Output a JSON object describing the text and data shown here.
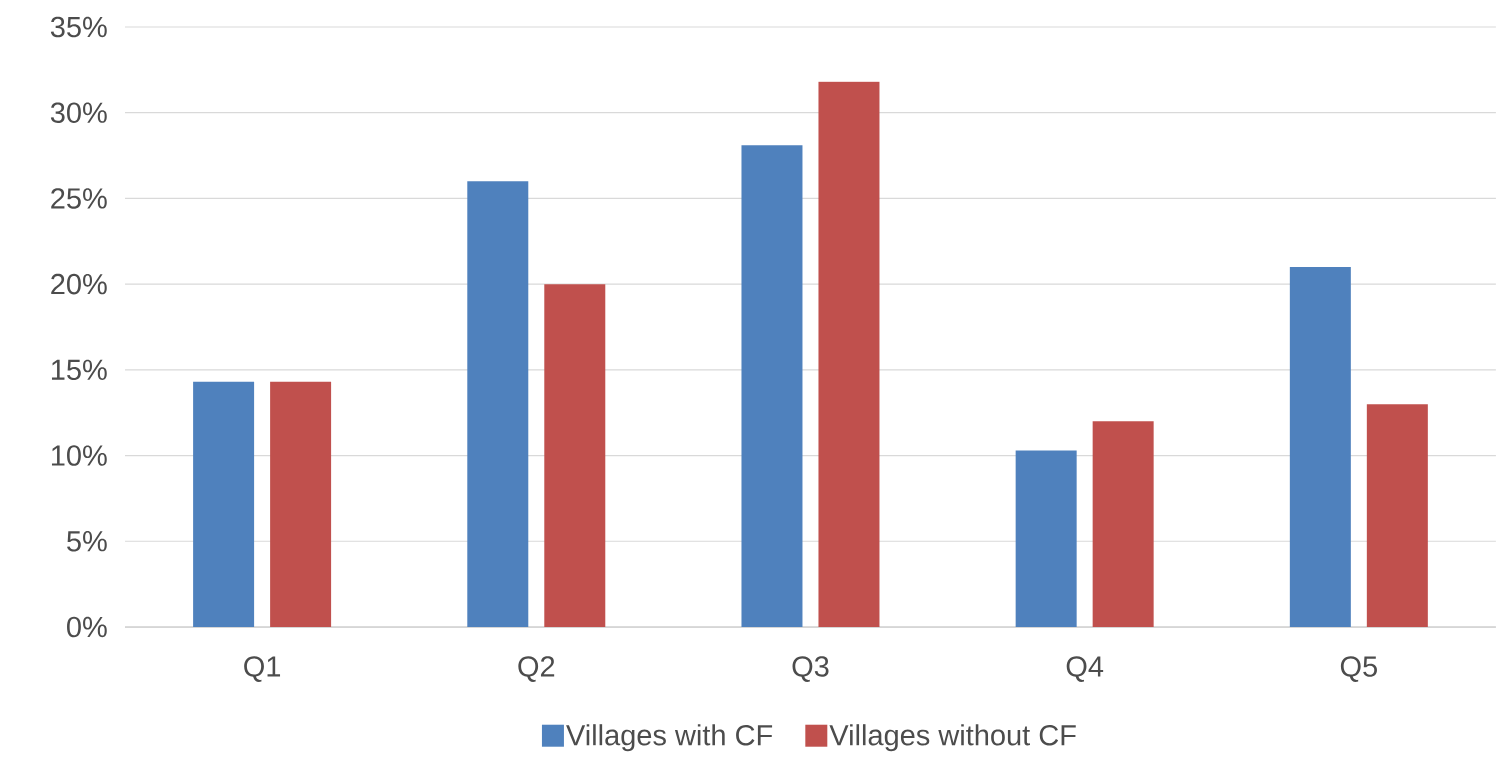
{
  "chart_data": {
    "type": "bar",
    "categories": [
      "Q1",
      "Q2",
      "Q3",
      "Q4",
      "Q5"
    ],
    "series": [
      {
        "name": "Villages with CF",
        "color": "#4f81bd",
        "values": [
          14.3,
          26.0,
          28.1,
          10.3,
          21.0
        ]
      },
      {
        "name": "Villages without CF",
        "color": "#c0504d",
        "values": [
          14.3,
          20.0,
          31.8,
          12.0,
          13.0
        ]
      }
    ],
    "ylim": [
      0,
      35
    ],
    "yticks": [
      {
        "value": 0,
        "label": "0%"
      },
      {
        "value": 5,
        "label": "5%"
      },
      {
        "value": 10,
        "label": "10%"
      },
      {
        "value": 15,
        "label": "15%"
      },
      {
        "value": 20,
        "label": "20%"
      },
      {
        "value": 25,
        "label": "25%"
      },
      {
        "value": 30,
        "label": "30%"
      },
      {
        "value": 35,
        "label": "35%"
      }
    ],
    "grid": "y",
    "legend": "bottom"
  }
}
